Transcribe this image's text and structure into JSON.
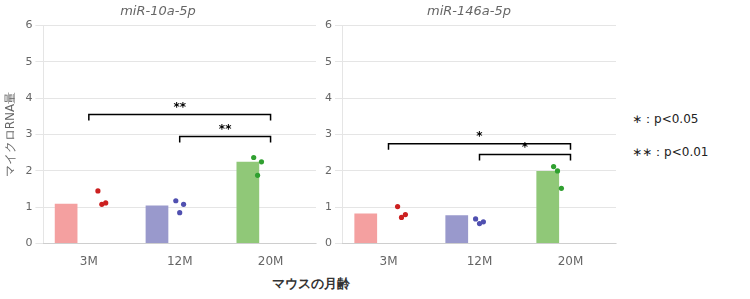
{
  "chart_data": [
    {
      "type": "bar",
      "title": "miR-10a-5p",
      "ylabel": "マイクロRNA量",
      "categories": [
        "3M",
        "12M",
        "20M"
      ],
      "values": [
        1.1,
        1.05,
        2.25
      ],
      "colors": [
        "#f4a0a0",
        "#9999cc",
        "#90c878"
      ],
      "points": [
        [
          1.45,
          1.12,
          1.08
        ],
        [
          1.18,
          1.08,
          0.85
        ],
        [
          2.37,
          2.25,
          1.88
        ]
      ],
      "point_colors": [
        "#cc2020",
        "#5050b0",
        "#30a030"
      ],
      "brackets": [
        {
          "from": "3M",
          "to": "20M",
          "y": 3.55,
          "label": "**"
        },
        {
          "from": "12M",
          "to": "20M",
          "y": 2.95,
          "label": "**"
        }
      ],
      "ylim": [
        0,
        6
      ],
      "yticks": [
        0,
        1,
        2,
        3,
        4,
        5,
        6
      ],
      "grid": true
    },
    {
      "type": "bar",
      "title": "miR-146a-5p",
      "categories": [
        "3M",
        "12M",
        "20M"
      ],
      "values": [
        0.83,
        0.78,
        2.0
      ],
      "colors": [
        "#f4a0a0",
        "#9999cc",
        "#90c878"
      ],
      "points": [
        [
          1.02,
          0.8,
          0.72
        ],
        [
          0.68,
          0.6,
          0.55
        ],
        [
          2.12,
          1.52,
          2.0
        ]
      ],
      "point_colors": [
        "#cc2020",
        "#5050b0",
        "#30a030"
      ],
      "brackets": [
        {
          "from": "3M",
          "to": "20M",
          "y": 2.75,
          "label": "*"
        },
        {
          "from": "12M",
          "to": "20M",
          "y": 2.45,
          "label": "*"
        }
      ],
      "ylim": [
        0,
        6
      ],
      "yticks": [
        0,
        1,
        2,
        3,
        4,
        5,
        6
      ],
      "grid": true
    }
  ],
  "xlabel": "マウスの月齢",
  "annotations": [
    "∗：p<0.05",
    "∗∗：p<0.01"
  ]
}
